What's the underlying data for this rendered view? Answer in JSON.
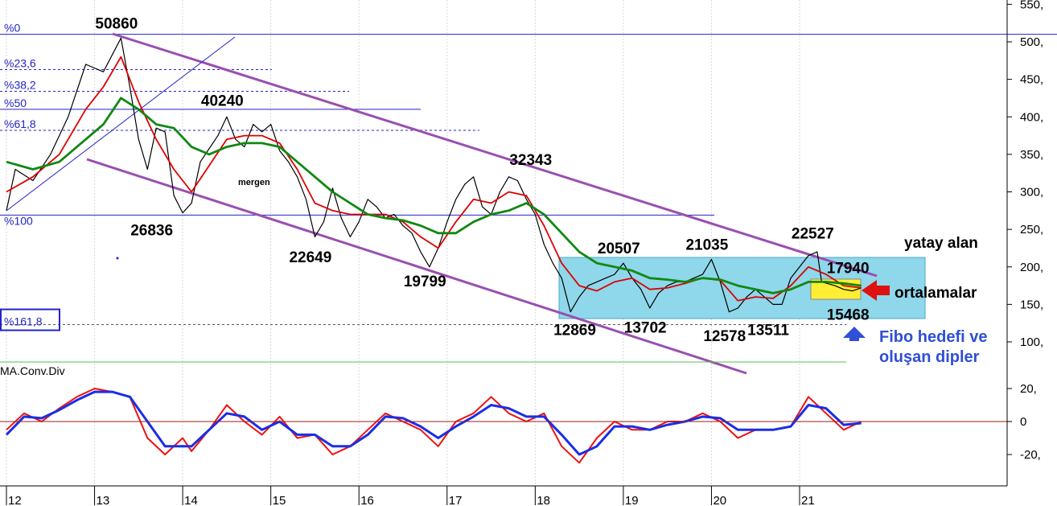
{
  "chart_data": {
    "type": "line",
    "title": "",
    "x_ticks": [
      "12",
      "13",
      "14",
      "15",
      "16",
      "17",
      "18",
      "19",
      "20",
      "21"
    ],
    "y_ticks": [
      "550,",
      "500,",
      "450,",
      "400,",
      "350,",
      "300,",
      "250,",
      "200,",
      "150,",
      "100,"
    ],
    "osc_ticks": [
      "20,",
      "0",
      "-20,"
    ],
    "fib_levels": [
      {
        "label": "%0",
        "value": 510
      },
      {
        "label": "%23,6",
        "value": 463
      },
      {
        "label": "%38,2",
        "value": 434
      },
      {
        "label": "%50",
        "value": 410
      },
      {
        "label": "%61,8",
        "value": 382
      },
      {
        "label": "%100",
        "value": 269
      },
      {
        "label": "%161,8",
        "value": 123
      }
    ],
    "price_annotations": [
      {
        "text": "50860",
        "x": 13.3,
        "y": 505
      },
      {
        "text": "40240",
        "x": 14.5,
        "y": 402
      },
      {
        "text": "26836",
        "x": 13.7,
        "y": 268
      },
      {
        "text": "22649",
        "x": 15.5,
        "y": 232
      },
      {
        "text": "19799",
        "x": 16.8,
        "y": 200
      },
      {
        "text": "32343",
        "x": 18.0,
        "y": 323
      },
      {
        "text": "12869",
        "x": 18.5,
        "y": 135
      },
      {
        "text": "20507",
        "x": 19.0,
        "y": 205
      },
      {
        "text": "13702",
        "x": 19.3,
        "y": 138
      },
      {
        "text": "21035",
        "x": 20.0,
        "y": 210
      },
      {
        "text": "12578",
        "x": 20.2,
        "y": 127
      },
      {
        "text": "13511",
        "x": 20.7,
        "y": 135
      },
      {
        "text": "22527",
        "x": 21.2,
        "y": 225
      },
      {
        "text": "17940",
        "x": 21.6,
        "y": 179
      },
      {
        "text": "15468",
        "x": 21.6,
        "y": 155
      }
    ],
    "series": [
      {
        "name": "price",
        "values": [
          [
            12.0,
            275
          ],
          [
            12.1,
            330
          ],
          [
            12.3,
            315
          ],
          [
            12.5,
            350
          ],
          [
            12.7,
            400
          ],
          [
            12.9,
            470
          ],
          [
            13.1,
            460
          ],
          [
            13.3,
            505
          ],
          [
            13.4,
            440
          ],
          [
            13.5,
            370
          ],
          [
            13.6,
            330
          ],
          [
            13.7,
            385
          ],
          [
            13.8,
            380
          ],
          [
            13.9,
            295
          ],
          [
            14.0,
            272
          ],
          [
            14.1,
            285
          ],
          [
            14.2,
            340
          ],
          [
            14.4,
            375
          ],
          [
            14.5,
            400
          ],
          [
            14.6,
            370
          ],
          [
            14.7,
            360
          ],
          [
            14.8,
            390
          ],
          [
            14.9,
            380
          ],
          [
            15.0,
            390
          ],
          [
            15.1,
            355
          ],
          [
            15.2,
            340
          ],
          [
            15.3,
            320
          ],
          [
            15.4,
            290
          ],
          [
            15.5,
            240
          ],
          [
            15.6,
            260
          ],
          [
            15.7,
            305
          ],
          [
            15.8,
            265
          ],
          [
            15.9,
            240
          ],
          [
            16.0,
            260
          ],
          [
            16.1,
            290
          ],
          [
            16.2,
            280
          ],
          [
            16.3,
            265
          ],
          [
            16.4,
            270
          ],
          [
            16.5,
            255
          ],
          [
            16.6,
            245
          ],
          [
            16.7,
            220
          ],
          [
            16.8,
            200
          ],
          [
            16.9,
            225
          ],
          [
            17.0,
            260
          ],
          [
            17.1,
            290
          ],
          [
            17.2,
            310
          ],
          [
            17.3,
            320
          ],
          [
            17.4,
            280
          ],
          [
            17.5,
            270
          ],
          [
            17.6,
            300
          ],
          [
            17.7,
            320
          ],
          [
            17.8,
            315
          ],
          [
            17.9,
            290
          ],
          [
            18.0,
            270
          ],
          [
            18.1,
            230
          ],
          [
            18.2,
            205
          ],
          [
            18.3,
            185
          ],
          [
            18.4,
            140
          ],
          [
            18.5,
            160
          ],
          [
            18.6,
            175
          ],
          [
            18.7,
            180
          ],
          [
            18.8,
            185
          ],
          [
            18.9,
            190
          ],
          [
            19.0,
            205
          ],
          [
            19.1,
            185
          ],
          [
            19.2,
            170
          ],
          [
            19.3,
            145
          ],
          [
            19.4,
            165
          ],
          [
            19.5,
            175
          ],
          [
            19.6,
            180
          ],
          [
            19.7,
            180
          ],
          [
            19.8,
            185
          ],
          [
            19.9,
            190
          ],
          [
            20.0,
            210
          ],
          [
            20.1,
            180
          ],
          [
            20.2,
            140
          ],
          [
            20.3,
            145
          ],
          [
            20.4,
            160
          ],
          [
            20.5,
            170
          ],
          [
            20.6,
            160
          ],
          [
            20.7,
            150
          ],
          [
            20.8,
            150
          ],
          [
            20.9,
            185
          ],
          [
            21.0,
            200
          ],
          [
            21.1,
            215
          ],
          [
            21.2,
            220
          ],
          [
            21.25,
            180
          ],
          [
            21.4,
            175
          ],
          [
            21.5,
            170
          ],
          [
            21.6,
            168
          ],
          [
            21.7,
            172
          ]
        ]
      },
      {
        "name": "ma_short",
        "values": [
          [
            12.0,
            300
          ],
          [
            12.3,
            320
          ],
          [
            12.6,
            350
          ],
          [
            12.9,
            410
          ],
          [
            13.1,
            440
          ],
          [
            13.3,
            480
          ],
          [
            13.5,
            420
          ],
          [
            13.7,
            370
          ],
          [
            13.9,
            330
          ],
          [
            14.1,
            300
          ],
          [
            14.3,
            335
          ],
          [
            14.5,
            370
          ],
          [
            14.7,
            375
          ],
          [
            14.9,
            375
          ],
          [
            15.1,
            365
          ],
          [
            15.3,
            330
          ],
          [
            15.5,
            285
          ],
          [
            15.7,
            275
          ],
          [
            15.9,
            270
          ],
          [
            16.1,
            270
          ],
          [
            16.3,
            270
          ],
          [
            16.5,
            260
          ],
          [
            16.7,
            240
          ],
          [
            16.9,
            225
          ],
          [
            17.1,
            260
          ],
          [
            17.3,
            290
          ],
          [
            17.5,
            285
          ],
          [
            17.7,
            300
          ],
          [
            17.9,
            295
          ],
          [
            18.1,
            255
          ],
          [
            18.3,
            205
          ],
          [
            18.5,
            175
          ],
          [
            18.7,
            168
          ],
          [
            18.9,
            180
          ],
          [
            19.1,
            185
          ],
          [
            19.3,
            170
          ],
          [
            19.5,
            172
          ],
          [
            19.7,
            178
          ],
          [
            19.9,
            185
          ],
          [
            20.1,
            182
          ],
          [
            20.3,
            155
          ],
          [
            20.5,
            160
          ],
          [
            20.7,
            158
          ],
          [
            20.9,
            175
          ],
          [
            21.1,
            200
          ],
          [
            21.3,
            190
          ],
          [
            21.5,
            175
          ],
          [
            21.7,
            172
          ]
        ]
      },
      {
        "name": "ma_long",
        "values": [
          [
            12.0,
            340
          ],
          [
            12.3,
            330
          ],
          [
            12.6,
            340
          ],
          [
            12.9,
            370
          ],
          [
            13.1,
            390
          ],
          [
            13.3,
            425
          ],
          [
            13.5,
            410
          ],
          [
            13.7,
            390
          ],
          [
            13.9,
            385
          ],
          [
            14.1,
            360
          ],
          [
            14.3,
            350
          ],
          [
            14.5,
            360
          ],
          [
            14.7,
            365
          ],
          [
            14.9,
            365
          ],
          [
            15.1,
            360
          ],
          [
            15.3,
            340
          ],
          [
            15.5,
            320
          ],
          [
            15.7,
            300
          ],
          [
            15.9,
            285
          ],
          [
            16.1,
            270
          ],
          [
            16.3,
            265
          ],
          [
            16.5,
            262
          ],
          [
            16.7,
            255
          ],
          [
            16.9,
            245
          ],
          [
            17.1,
            245
          ],
          [
            17.3,
            260
          ],
          [
            17.5,
            270
          ],
          [
            17.7,
            275
          ],
          [
            17.9,
            285
          ],
          [
            18.1,
            270
          ],
          [
            18.3,
            245
          ],
          [
            18.5,
            220
          ],
          [
            18.7,
            205
          ],
          [
            18.9,
            200
          ],
          [
            19.1,
            195
          ],
          [
            19.3,
            185
          ],
          [
            19.5,
            183
          ],
          [
            19.7,
            180
          ],
          [
            19.9,
            185
          ],
          [
            20.1,
            183
          ],
          [
            20.3,
            175
          ],
          [
            20.5,
            170
          ],
          [
            20.7,
            165
          ],
          [
            20.9,
            170
          ],
          [
            21.1,
            180
          ],
          [
            21.3,
            180
          ],
          [
            21.5,
            178
          ],
          [
            21.7,
            175
          ]
        ]
      },
      {
        "name": "macd",
        "values": [
          [
            12.0,
            -5
          ],
          [
            12.2,
            5
          ],
          [
            12.4,
            0
          ],
          [
            12.6,
            8
          ],
          [
            12.8,
            15
          ],
          [
            13.0,
            20
          ],
          [
            13.2,
            18
          ],
          [
            13.4,
            15
          ],
          [
            13.6,
            -10
          ],
          [
            13.8,
            -20
          ],
          [
            14.0,
            -10
          ],
          [
            14.1,
            -18
          ],
          [
            14.3,
            -5
          ],
          [
            14.5,
            10
          ],
          [
            14.7,
            0
          ],
          [
            14.9,
            -8
          ],
          [
            15.1,
            3
          ],
          [
            15.3,
            -10
          ],
          [
            15.5,
            -8
          ],
          [
            15.7,
            -20
          ],
          [
            15.9,
            -15
          ],
          [
            16.1,
            -5
          ],
          [
            16.3,
            5
          ],
          [
            16.5,
            0
          ],
          [
            16.7,
            -5
          ],
          [
            16.9,
            -15
          ],
          [
            17.1,
            0
          ],
          [
            17.3,
            5
          ],
          [
            17.5,
            15
          ],
          [
            17.7,
            5
          ],
          [
            17.9,
            0
          ],
          [
            18.1,
            5
          ],
          [
            18.3,
            -15
          ],
          [
            18.5,
            -25
          ],
          [
            18.7,
            -10
          ],
          [
            18.9,
            0
          ],
          [
            19.1,
            -5
          ],
          [
            19.3,
            -5
          ],
          [
            19.5,
            0
          ],
          [
            19.7,
            0
          ],
          [
            19.9,
            5
          ],
          [
            20.1,
            0
          ],
          [
            20.3,
            -10
          ],
          [
            20.5,
            -5
          ],
          [
            20.7,
            -5
          ],
          [
            20.9,
            -3
          ],
          [
            21.1,
            15
          ],
          [
            21.3,
            5
          ],
          [
            21.5,
            -5
          ],
          [
            21.7,
            0
          ]
        ]
      },
      {
        "name": "signal",
        "values": [
          [
            12.0,
            -8
          ],
          [
            12.2,
            3
          ],
          [
            12.4,
            2
          ],
          [
            12.6,
            7
          ],
          [
            12.8,
            13
          ],
          [
            13.0,
            18
          ],
          [
            13.2,
            18
          ],
          [
            13.4,
            15
          ],
          [
            13.6,
            0
          ],
          [
            13.8,
            -15
          ],
          [
            14.0,
            -15
          ],
          [
            14.1,
            -15
          ],
          [
            14.3,
            -5
          ],
          [
            14.5,
            5
          ],
          [
            14.7,
            3
          ],
          [
            14.9,
            -5
          ],
          [
            15.1,
            0
          ],
          [
            15.3,
            -8
          ],
          [
            15.5,
            -8
          ],
          [
            15.7,
            -15
          ],
          [
            15.9,
            -15
          ],
          [
            16.1,
            -8
          ],
          [
            16.3,
            3
          ],
          [
            16.5,
            2
          ],
          [
            16.7,
            -3
          ],
          [
            16.9,
            -10
          ],
          [
            17.1,
            -3
          ],
          [
            17.3,
            3
          ],
          [
            17.5,
            10
          ],
          [
            17.7,
            8
          ],
          [
            17.9,
            3
          ],
          [
            18.1,
            3
          ],
          [
            18.3,
            -8
          ],
          [
            18.5,
            -20
          ],
          [
            18.7,
            -15
          ],
          [
            18.9,
            -3
          ],
          [
            19.1,
            -3
          ],
          [
            19.3,
            -5
          ],
          [
            19.5,
            -2
          ],
          [
            19.7,
            0
          ],
          [
            19.9,
            3
          ],
          [
            20.1,
            2
          ],
          [
            20.3,
            -5
          ],
          [
            20.5,
            -5
          ],
          [
            20.7,
            -5
          ],
          [
            20.9,
            -3
          ],
          [
            21.1,
            10
          ],
          [
            21.3,
            8
          ],
          [
            21.5,
            -2
          ],
          [
            21.7,
            -1
          ]
        ]
      }
    ],
    "labels": {
      "mergen": "mergen",
      "yatay": "yatay alan",
      "ortalamalar": "ortalamalar",
      "fibo1": "Fibo hedefi ve",
      "fibo2": "oluşan dipler",
      "osc": "MA.Conv.Div"
    },
    "colors": {
      "price": "#000000",
      "ma_short": "#dd0000",
      "ma_long": "#118811",
      "channel": "#9a4fb0",
      "macd": "#ee1111",
      "signal": "#1a2ee6",
      "box": "#8fd7ea",
      "fib": "#2323c8"
    }
  }
}
